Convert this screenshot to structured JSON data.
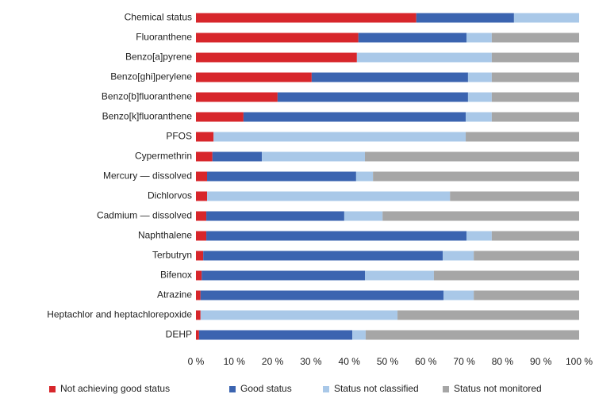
{
  "chart_data": {
    "type": "stacked-bar-horizontal",
    "categories": [
      "Chemical status",
      "Fluoranthene",
      "Benzo[a]pyrene",
      "Benzo[ghi]perylene",
      "Benzo[b]fluoranthene",
      "Benzo[k]fluoranthene",
      "PFOS",
      "Cypermethrin",
      "Mercury — dissolved",
      "Dichlorvos",
      "Cadmium — dissolved",
      "Naphthalene",
      "Terbutryn",
      "Bifenox",
      "Atrazine",
      "Heptachlor and heptachlorepoxide",
      "DEHP"
    ],
    "series": [
      {
        "name": "Not achieving good status",
        "color": "#d7262b",
        "values": [
          57.5,
          42.4,
          42,
          30.2,
          21.3,
          12.4,
          4.6,
          4.3,
          2.9,
          2.9,
          2.7,
          2.7,
          1.9,
          1.5,
          1.2,
          1.2,
          0.8
        ]
      },
      {
        "name": "Good status",
        "color": "#3b64b0",
        "values": [
          25.5,
          28.2,
          0,
          40.8,
          49.7,
          58,
          0,
          12.9,
          38.9,
          0,
          36,
          67.9,
          62.5,
          42.6,
          63.4,
          0,
          40
        ]
      },
      {
        "name": "Status not classified",
        "color": "#a9c8e8",
        "values": [
          17,
          6.6,
          35.2,
          6.2,
          6.2,
          6.8,
          65.8,
          26.9,
          4.4,
          63.4,
          10,
          6.6,
          8.1,
          18,
          7.9,
          51.4,
          3.5
        ]
      },
      {
        "name": "Status not monitored",
        "color": "#a6a6a6",
        "values": [
          0,
          22.8,
          22.8,
          22.8,
          22.8,
          22.8,
          29.6,
          55.9,
          53.8,
          33.7,
          51.3,
          22.8,
          27.5,
          37.9,
          27.5,
          47.4,
          55.7
        ]
      }
    ],
    "xlim": [
      0,
      100
    ],
    "xticks": [
      {
        "value": 0,
        "label": "0 %"
      },
      {
        "value": 10,
        "label": "10 %"
      },
      {
        "value": 20,
        "label": "20 %"
      },
      {
        "value": 30,
        "label": "30 %"
      },
      {
        "value": 40,
        "label": "40 %"
      },
      {
        "value": 50,
        "label": "50 %"
      },
      {
        "value": 60,
        "label": "60 %"
      },
      {
        "value": 70,
        "label": "70 %"
      },
      {
        "value": 80,
        "label": "80 %"
      },
      {
        "value": 90,
        "label": "90 %"
      },
      {
        "value": 100,
        "label": "100 %"
      }
    ],
    "legend": "bottom"
  }
}
